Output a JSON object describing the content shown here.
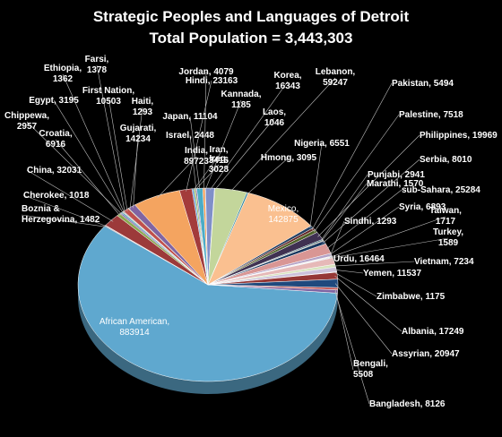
{
  "chart_data": {
    "type": "pie",
    "title": "Strategic Peoples and Languages of Detroit",
    "subtitle": "Total Population = 3,443,303",
    "slices": [
      {
        "label": "African American",
        "value": 883914,
        "color": "#5fa8cf",
        "display": "African American,\n883914"
      },
      {
        "label": "Boznia & Herzegovina",
        "value": 1482,
        "color": "#7a2e2e",
        "display": "Boznia &\nHerzegovina, 1482"
      },
      {
        "label": "Cherokee",
        "value": 1018,
        "color": "#7b6aa0",
        "display": "Cherokee, 1018"
      },
      {
        "label": "China",
        "value": 32031,
        "color": "#9c3a3a",
        "display": "China, 32031"
      },
      {
        "label": "Croatia",
        "value": 6916,
        "color": "#8aa84f",
        "display": "Croatia,\n6916"
      },
      {
        "label": "Chippewa",
        "value": 2957,
        "color": "#7a5aa6",
        "display": "Chippewa,\n2957"
      },
      {
        "label": "Egypt",
        "value": 3195,
        "color": "#4aa0c0",
        "display": "Egypt, 3195"
      },
      {
        "label": "Ethiopia",
        "value": 1362,
        "color": "#e09a45",
        "display": "Ethiopia,\n1362"
      },
      {
        "label": "Farsi",
        "value": 1378,
        "color": "#4e7fbf",
        "display": "Farsi,\n1378"
      },
      {
        "label": "First Nation",
        "value": 10503,
        "color": "#c0504d",
        "display": "First Nation,\n10503"
      },
      {
        "label": "Haiti",
        "value": 1293,
        "color": "#9bbb59",
        "display": "Haiti,\n1293"
      },
      {
        "label": "Gujarati",
        "value": 14234,
        "color": "#8064a2",
        "display": "Gujarati,\n14234"
      },
      {
        "label": "India",
        "value": 89723,
        "color": "#f4a460",
        "display": "India,\n89723"
      },
      {
        "label": "Hindi",
        "value": 23163,
        "color": "#a33b3b",
        "display": "Hindi, 23163"
      },
      {
        "label": "Iran",
        "value": 3416,
        "color": "#5b9bd5",
        "display": "Iran,\n3416"
      },
      {
        "label": "Iraq",
        "value": 3028,
        "color": "#9bbb59",
        "display": "Iraq,\n3028"
      },
      {
        "label": "Israel",
        "value": 2448,
        "color": "#8064a2",
        "display": "Israel, 2448"
      },
      {
        "label": "Japan",
        "value": 11104,
        "color": "#4bacc6",
        "display": "Japan, 11104"
      },
      {
        "label": "Jordan",
        "value": 4079,
        "color": "#f79646",
        "display": "Jordan, 4079"
      },
      {
        "label": "Kannada",
        "value": 1185,
        "color": "#2c4d75",
        "display": "Kannada,\n1185"
      },
      {
        "label": "Korea",
        "value": 16343,
        "color": "#7f8fc9",
        "display": "Korea,\n16343"
      },
      {
        "label": "Laos",
        "value": 1046,
        "color": "#77933c",
        "display": "Laos,\n1046"
      },
      {
        "label": "Lebanon",
        "value": 59247,
        "color": "#c3d69b",
        "display": "Lebanon,\n59247"
      },
      {
        "label": "Hmong",
        "value": 3095,
        "color": "#31859c",
        "display": "Hmong, 3095"
      },
      {
        "label": "Mexico",
        "value": 142875,
        "color": "#fac090",
        "display": "Mexico,\n142875"
      },
      {
        "label": "Nigeria",
        "value": 6551,
        "color": "#244062",
        "display": "Nigeria, 6551"
      },
      {
        "label": "Pakistan",
        "value": 5494,
        "color": "#632523",
        "display": "Pakistan, 5494"
      },
      {
        "label": "Palestine",
        "value": 7518,
        "color": "#4f6228",
        "display": "Palestine, 7518"
      },
      {
        "label": "Philippines",
        "value": 19969,
        "color": "#3f3151",
        "display": "Philippines, 19969"
      },
      {
        "label": "Punjabi",
        "value": 2941,
        "color": "#215968",
        "display": "Punjabi, 2941"
      },
      {
        "label": "Marathi",
        "value": 1570,
        "color": "#974806",
        "display": "Marathi, 1570"
      },
      {
        "label": "Serbia",
        "value": 8010,
        "color": "#17375e",
        "display": "Serbia, 8010"
      },
      {
        "label": "sub-Sahara",
        "value": 25284,
        "color": "#d99694",
        "display": "sub-Sahara, 25284"
      },
      {
        "label": "Syria",
        "value": 6893,
        "color": "#b3a2c7",
        "display": "Syria, 6893"
      },
      {
        "label": "Sindhi",
        "value": 1293,
        "color": "#93cddd",
        "display": "Sindhi, 1293"
      },
      {
        "label": "Taiwan",
        "value": 1717,
        "color": "#fcd5b5",
        "display": "Taiwan,\n1717"
      },
      {
        "label": "Turkey",
        "value": 1589,
        "color": "#8eb4e3",
        "display": "Turkey,\n1589"
      },
      {
        "label": "Urdu",
        "value": 16464,
        "color": "#e6b9b8",
        "display": "Urdu, 16464"
      },
      {
        "label": "Vietnam",
        "value": 7234,
        "color": "#d7e4bd",
        "display": "Vietnam, 7234"
      },
      {
        "label": "Yemen",
        "value": 11537,
        "color": "#ccc1da",
        "display": "Yemen, 11537"
      },
      {
        "label": "Zimbabwe",
        "value": 1175,
        "color": "#b7dee8",
        "display": "Zimbabwe, 1175"
      },
      {
        "label": "Albania",
        "value": 17249,
        "color": "#953735",
        "display": "Albania, 17249"
      },
      {
        "label": "Assyrian",
        "value": 20947,
        "color": "#1f497d",
        "display": "Assyrian, 20947"
      },
      {
        "label": "Bengali",
        "value": 5508,
        "color": "#c0504d",
        "display": "Bengali,\n5508"
      },
      {
        "label": "Bangladesh",
        "value": 8126,
        "color": "#8064a2",
        "display": "Bangladesh, 8126"
      }
    ]
  }
}
